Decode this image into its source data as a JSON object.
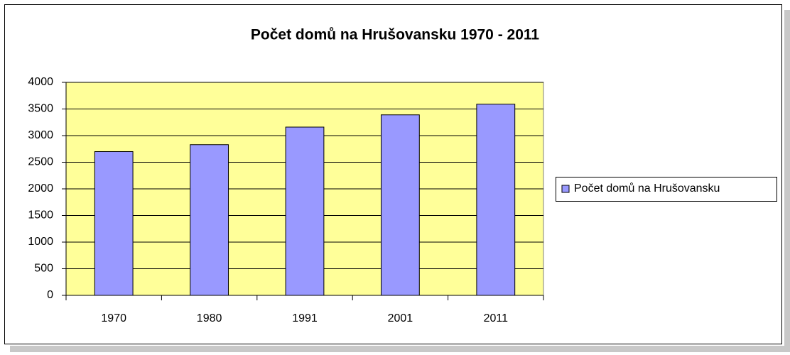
{
  "chart_data": {
    "type": "bar",
    "title": "Počet domů na Hrušovansku 1970 - 2011",
    "categories": [
      "1970",
      "1980",
      "1991",
      "2001",
      "2011"
    ],
    "series": [
      {
        "name": "Počet domů na Hrušovansku",
        "color": "#9999ff",
        "values": [
          2700,
          2830,
          3160,
          3390,
          3590
        ]
      }
    ],
    "ylim": [
      0,
      4000
    ],
    "yticks": [
      0,
      500,
      1000,
      1500,
      2000,
      2500,
      3000,
      3500,
      4000
    ],
    "grid": true,
    "legend": "right",
    "plot_background": "#ffff99"
  }
}
